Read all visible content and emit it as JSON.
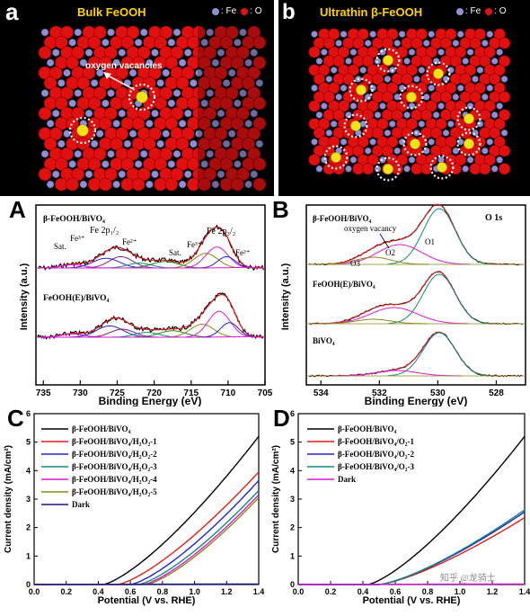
{
  "panels": {
    "a": {
      "letter": "a",
      "title": "Bulk FeOOH",
      "fe_label": ": Fe",
      "o_label": ": O",
      "annotation": "oxygen vacancies"
    },
    "b": {
      "letter": "b",
      "title": "Ultrathin β-FeOOH",
      "fe_label": ": Fe",
      "o_label": ": O"
    },
    "A": {
      "letter": "A"
    },
    "B": {
      "letter": "B"
    },
    "C": {
      "letter": "C"
    },
    "D": {
      "letter": "D"
    }
  },
  "colors": {
    "oxygen": "#e01010",
    "iron": "#8f8fd4",
    "vacancy": "#f2e21a",
    "title": "#ffd100"
  },
  "chart_data": [
    {
      "id": "A",
      "type": "line",
      "xlabel": "Binding Energy (eV)",
      "ylabel": "Intensity (a.u.)",
      "xlim": [
        736,
        705
      ],
      "xticks": [
        735,
        730,
        725,
        720,
        715,
        710,
        705
      ],
      "spectra": [
        {
          "name": "β-FeOOH/BiVO₄",
          "labels": [
            "Sat.",
            "Fe³⁺",
            "Fe 2p₁/₂",
            "Fe²⁺",
            "Sat.",
            "Fe³⁺",
            "Fe 2p₃/₂",
            "Fe²⁺"
          ]
        },
        {
          "name": "FeOOH(E)/BiVO₄"
        }
      ]
    },
    {
      "id": "B",
      "type": "line",
      "xlabel": "Binding Energy (eV)",
      "ylabel": "Intensity (a.u.)",
      "xlim": [
        534.5,
        527
      ],
      "xticks": [
        534,
        532,
        530,
        528
      ],
      "title": "O 1s",
      "spectra": [
        {
          "name": "β-FeOOH/BiVO₄",
          "labels": [
            "oxygen vacancy",
            "O3",
            "O2",
            "O1"
          ]
        },
        {
          "name": "FeOOH(E)/BiVO₄"
        },
        {
          "name": "BiVO₄"
        }
      ]
    },
    {
      "id": "C",
      "type": "line",
      "xlabel": "Potential (V vs. RHE)",
      "ylabel": "Current density (mA/cm²)",
      "xlim": [
        0,
        1.4
      ],
      "ylim": [
        0,
        6
      ],
      "xticks": [
        0.0,
        0.2,
        0.4,
        0.6,
        0.8,
        1.0,
        1.2,
        1.4
      ],
      "yticks": [
        0,
        1,
        2,
        3,
        4,
        5,
        6
      ],
      "legend_position": "top-left",
      "series": [
        {
          "name": "β-FeOOH/BiVO₄",
          "color": "#000000",
          "onset": 0.43,
          "end_value": 5.2
        },
        {
          "name": "β-FeOOH/BiVO₄/H₂O₂-1",
          "color": "#e0201a",
          "onset": 0.52,
          "end_value": 3.95
        },
        {
          "name": "β-FeOOH/BiVO₄/H₂O₂-2",
          "color": "#2323c8",
          "onset": 0.6,
          "end_value": 3.65
        },
        {
          "name": "β-FeOOH/BiVO₄/H₂O₂-3",
          "color": "#138a82",
          "onset": 0.65,
          "end_value": 3.3
        },
        {
          "name": "β-FeOOH/BiVO₄/H₂O₂-4",
          "color": "#d81ad8",
          "onset": 0.68,
          "end_value": 3.15
        },
        {
          "name": "β-FeOOH/BiVO₄/H₂O₂-5",
          "color": "#8a8a1a",
          "onset": 0.7,
          "end_value": 3.05
        },
        {
          "name": "Dark",
          "color": "#1a1a8a",
          "onset": null,
          "end_value": 0.02
        }
      ]
    },
    {
      "id": "D",
      "type": "line",
      "xlabel": "Potential (V vs. RHE)",
      "ylabel": "Current density (mA/cm²)",
      "xlim": [
        0,
        1.4
      ],
      "ylim": [
        0,
        6
      ],
      "xticks": [
        0.0,
        0.2,
        0.4,
        0.6,
        0.8,
        1.0,
        1.2,
        1.4
      ],
      "yticks": [
        0,
        1,
        2,
        3,
        4,
        5,
        6
      ],
      "legend_position": "top-left",
      "watermark": "知乎 @龙骑士",
      "series": [
        {
          "name": "β-FeOOH/BiVO₄",
          "color": "#000000",
          "onset": 0.43,
          "end_value": 5.2
        },
        {
          "name": "β-FeOOH/BiVO₄/O₂-1",
          "color": "#e0201a",
          "onset": 0.5,
          "end_value": 2.35
        },
        {
          "name": "β-FeOOH/BiVO₄/O₂-2",
          "color": "#2323c8",
          "onset": 0.5,
          "end_value": 2.55
        },
        {
          "name": "β-FeOOH/BiVO₄/O₂-3",
          "color": "#138a82",
          "onset": 0.5,
          "end_value": 2.62
        },
        {
          "name": "Dark",
          "color": "#d81ad8",
          "onset": null,
          "end_value": 0.02
        }
      ]
    }
  ]
}
